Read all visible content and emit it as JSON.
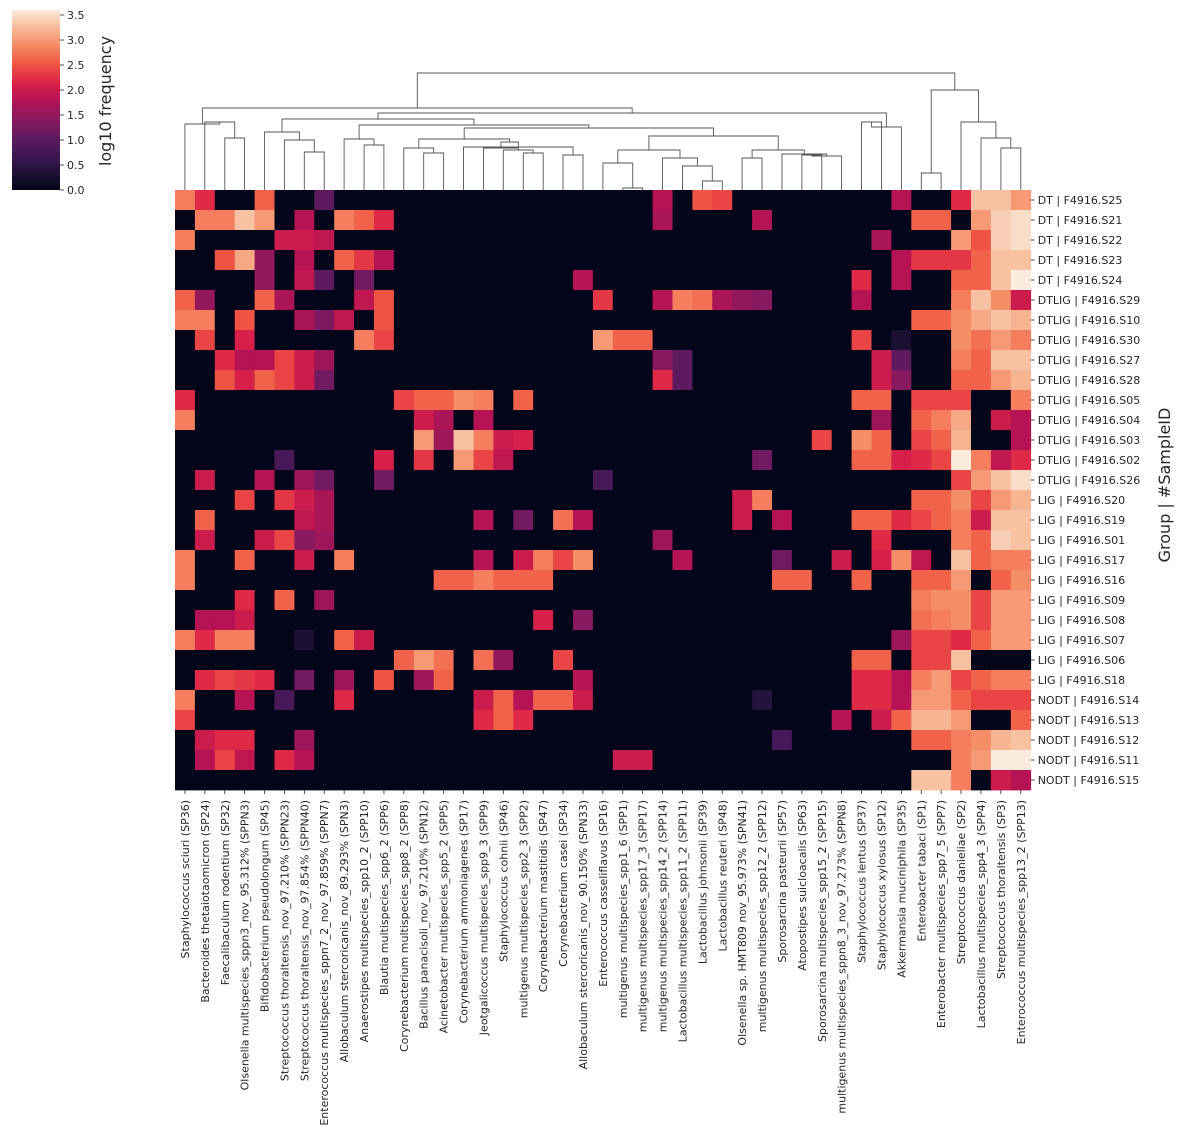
{
  "chart_data": {
    "type": "heatmap",
    "title": "",
    "xlabel": "",
    "ylabel": "Group | #SampleID",
    "colorbar": {
      "label": "log10 frequency",
      "range": [
        0,
        3.6
      ],
      "ticks": [
        "0.0",
        "0.5",
        "1.0",
        "1.5",
        "2.0",
        "2.5",
        "3.0",
        "3.5"
      ],
      "colormap": "rocket"
    },
    "dendrogram": "columns (top)",
    "columns": [
      "Staphylococcus sciuri (SP36)",
      "Bacteroides thetaiotaomicron (SP24)",
      "Faecalibaculum rodentium (SP32)",
      "Olsenella multispecies_sppn3_nov_95.312% (SPPN3)",
      "Bifidobacterium pseudolongum (SP45)",
      "Streptococcus thoraltensis_nov_97.210% (SPPN23)",
      "Streptococcus thoraltensis_nov_97.854% (SPPN40)",
      "Enterococcus multispecies_sppn7_2_nov_97.859% (SPPN7)",
      "Allobaculum stercoricanis_nov_89.293% (SPN3)",
      "Anaerostipes multispecies_spp10_2 (SPP10)",
      "Blautia multispecies_spp6_2 (SPP6)",
      "Corynebacterium multispecies_spp8_2 (SPP8)",
      "Bacillus panacisoli_nov_97.210% (SPN12)",
      "Acinetobacter multispecies_spp5_2 (SPP5)",
      "Corynebacterium ammoniagenes (SP17)",
      "Jeotgalicoccus multispecies_spp9_3 (SPP9)",
      "Staphylococcus cohnii (SP46)",
      "multigenus multispecies_spp2_3 (SPP2)",
      "Corynebacterium mastitidis (SP47)",
      "Corynebacterium casei (SP34)",
      "Allobaculum stercoricanis_nov_90.150% (SPN33)",
      "Enterococcus casseliflavus (SP16)",
      "multigenus multispecies_spp1_6 (SPP1)",
      "multigenus multispecies_spp17_3 (SPP17)",
      "multigenus multispecies_spp14_2 (SPP14)",
      "Lactobacillus multispecies_spp11_2 (SPP11)",
      "Lactobacillus johnsonii (SP39)",
      "Lactobacillus reuteri (SP48)",
      "Olsenella sp. HMT809 nov_95.973% (SPN41)",
      "multigenus multispecies_spp12_2 (SPP12)",
      "Sporosarcina pasteurii (SP57)",
      "Atopostipes suicloacalis (SP63)",
      "Sporosarcina multispecies_spp15_2 (SPP15)",
      "multigenus multispecies_sppn8_3_nov_97.273% (SPPN8)",
      "Staphylococcus lentus (SP37)",
      "Staphylococcus xylosus (SP12)",
      "Akkermansia muciniphila (SP35)",
      "Enterobacter tabaci (SP1)",
      "Enterobacter multispecies_spp7_5 (SPP7)",
      "Streptococcus danieliae (SP2)",
      "Lactobacillus multispecies_spp4_3 (SPP4)",
      "Streptococcus thoraltensis (SP3)",
      "Enterococcus multispecies_spp13_2 (SPP13)"
    ],
    "rows": [
      "DT | F4916.S25",
      "DT | F4916.S21",
      "DT | F4916.S22",
      "DT | F4916.S23",
      "DT | F4916.S24",
      "DTLIG | F4916.S29",
      "DTLIG | F4916.S10",
      "DTLIG | F4916.S30",
      "DTLIG | F4916.S27",
      "DTLIG | F4916.S28",
      "DTLIG | F4916.S05",
      "DTLIG | F4916.S04",
      "DTLIG | F4916.S03",
      "DTLIG | F4916.S02",
      "DTLIG | F4916.S26",
      "LIG | F4916.S20",
      "LIG | F4916.S19",
      "LIG | F4916.S01",
      "LIG | F4916.S17",
      "LIG | F4916.S16",
      "LIG | F4916.S09",
      "LIG | F4916.S08",
      "LIG | F4916.S07",
      "LIG | F4916.S06",
      "LIG | F4916.S18",
      "NODT | F4916.S14",
      "NODT | F4916.S13",
      "NODT | F4916.S12",
      "NODT | F4916.S11",
      "NODT | F4916.S15"
    ],
    "values": [
      [
        2.8,
        2.2,
        0,
        0,
        2.6,
        0,
        0,
        1.0,
        0,
        0,
        0,
        0,
        0,
        0,
        0,
        0,
        0,
        0,
        0,
        0,
        0,
        0,
        0,
        0,
        1.8,
        0,
        2.5,
        2.4,
        0,
        0,
        0,
        0,
        0,
        0,
        0,
        0,
        1.8,
        0,
        0,
        2.2,
        3.3,
        3.3,
        3.0
      ],
      [
        0,
        2.8,
        2.8,
        3.3,
        3.0,
        0,
        1.8,
        0,
        2.8,
        2.6,
        2.2,
        0,
        0,
        0,
        0,
        0,
        0,
        0,
        0,
        0,
        0,
        0,
        0,
        0,
        1.7,
        0,
        0,
        0,
        0,
        1.8,
        0,
        0,
        0,
        0,
        0,
        0,
        0,
        2.6,
        2.6,
        0,
        3.0,
        3.4,
        3.5
      ],
      [
        2.8,
        0,
        0,
        0,
        0,
        2.0,
        2.0,
        1.9,
        0,
        0,
        0,
        0,
        0,
        0,
        0,
        0,
        0,
        0,
        0,
        0,
        0,
        0,
        0,
        0,
        0,
        0,
        0,
        0,
        0,
        0,
        0,
        0,
        0,
        0,
        0,
        1.7,
        0,
        0,
        0,
        3.0,
        2.5,
        3.4,
        3.5
      ],
      [
        0,
        0,
        2.5,
        3.1,
        1.5,
        0,
        1.8,
        0,
        2.6,
        2.3,
        1.8,
        0,
        0,
        0,
        0,
        0,
        0,
        0,
        0,
        0,
        0,
        0,
        0,
        0,
        0,
        0,
        0,
        0,
        0,
        0,
        0,
        0,
        0,
        0,
        0,
        0,
        1.8,
        2.3,
        2.3,
        2.3,
        2.6,
        3.3,
        3.3
      ],
      [
        0,
        0,
        0,
        0,
        1.5,
        0,
        1.9,
        1.0,
        0,
        1.2,
        0,
        0,
        0,
        0,
        0,
        0,
        0,
        0,
        0,
        0,
        1.8,
        0,
        0,
        0,
        0,
        0,
        0,
        0,
        0,
        0,
        0,
        0,
        0,
        0,
        2.2,
        0,
        1.8,
        0,
        0,
        2.6,
        2.6,
        3.3,
        3.6
      ],
      [
        2.6,
        1.5,
        0,
        0,
        2.6,
        1.7,
        0,
        0,
        0,
        1.9,
        2.5,
        0,
        0,
        0,
        0,
        0,
        0,
        0,
        0,
        0,
        0,
        2.3,
        0,
        0,
        1.8,
        2.8,
        2.7,
        1.7,
        1.5,
        1.4,
        0,
        0,
        0,
        0,
        1.8,
        0,
        0,
        0,
        0,
        2.8,
        3.3,
        2.9,
        2.0
      ],
      [
        2.8,
        2.8,
        0,
        2.5,
        0,
        0,
        1.7,
        1.3,
        1.9,
        0,
        2.5,
        0,
        0,
        0,
        0,
        0,
        0,
        0,
        0,
        0,
        0,
        0,
        0,
        0,
        0,
        0,
        0,
        0,
        0,
        0,
        0,
        0,
        0,
        0,
        0,
        0,
        0,
        2.6,
        2.6,
        2.9,
        3.1,
        3.3,
        3.2
      ],
      [
        0,
        2.4,
        0,
        2.1,
        0,
        0,
        0,
        0,
        0,
        2.8,
        2.4,
        0,
        0,
        0,
        0,
        0,
        0,
        0,
        0,
        0,
        0,
        3.0,
        2.6,
        2.6,
        0,
        0,
        0,
        0,
        0,
        0,
        0,
        0,
        0,
        0,
        2.4,
        0,
        0.3,
        0,
        0,
        2.9,
        2.7,
        3.0,
        2.8
      ],
      [
        0,
        0,
        2.2,
        1.8,
        1.8,
        2.4,
        2.0,
        1.6,
        0,
        0,
        0,
        0,
        0,
        0,
        0,
        0,
        0,
        0,
        0,
        0,
        0,
        0,
        0,
        0,
        1.4,
        1.0,
        0,
        0,
        0,
        0,
        0,
        0,
        0,
        0,
        0,
        2.0,
        1.0,
        0,
        0,
        2.8,
        2.6,
        3.3,
        3.3
      ],
      [
        0,
        0,
        2.5,
        2.1,
        2.6,
        2.4,
        2.0,
        1.2,
        0,
        0,
        0,
        0,
        0,
        0,
        0,
        0,
        0,
        0,
        0,
        0,
        0,
        0,
        0,
        0,
        2.2,
        1.0,
        0,
        0,
        0,
        0,
        0,
        0,
        0,
        0,
        0,
        2.0,
        1.4,
        0,
        0,
        2.6,
        2.6,
        3.0,
        3.2
      ],
      [
        2.2,
        0,
        0,
        0,
        0,
        0,
        0,
        0,
        0,
        0,
        0,
        2.4,
        2.6,
        2.6,
        2.9,
        2.8,
        0,
        2.6,
        0,
        0,
        0,
        0,
        0,
        0,
        0,
        0,
        0,
        0,
        0,
        0,
        0,
        0,
        0,
        0,
        2.6,
        2.6,
        0,
        2.4,
        2.4,
        2.4,
        0,
        0,
        2.8
      ],
      [
        2.8,
        0,
        0,
        0,
        0,
        0,
        0,
        0,
        0,
        0,
        0,
        0,
        2.0,
        1.7,
        0,
        1.8,
        0,
        0,
        0,
        0,
        0,
        0,
        0,
        0,
        0,
        0,
        0,
        0,
        0,
        0,
        0,
        0,
        0,
        0,
        0,
        1.6,
        0,
        2.6,
        2.8,
        3.1,
        0,
        2.0,
        1.8
      ],
      [
        0,
        0,
        0,
        0,
        0,
        0,
        0,
        0,
        0,
        0,
        0,
        0,
        3.0,
        1.6,
        3.3,
        2.8,
        2.0,
        2.1,
        0,
        0,
        0,
        0,
        0,
        0,
        0,
        0,
        0,
        0,
        0,
        0,
        0,
        0,
        2.4,
        0,
        2.9,
        2.6,
        0,
        2.4,
        2.6,
        3.2,
        0,
        0,
        1.8
      ],
      [
        0,
        0,
        0,
        0,
        0,
        0.8,
        0,
        0,
        0,
        0,
        2.1,
        0,
        2.3,
        0,
        3.0,
        2.4,
        1.9,
        0,
        0,
        0,
        0,
        0,
        0,
        0,
        0,
        0,
        0,
        0,
        0,
        1.2,
        0,
        0,
        0,
        0,
        2.6,
        2.6,
        2.1,
        2.2,
        2.4,
        3.6,
        2.8,
        1.9,
        2.2
      ],
      [
        0,
        2.0,
        0,
        0,
        1.8,
        0,
        1.6,
        1.2,
        0,
        0,
        1.2,
        0,
        0,
        0,
        0,
        0,
        0,
        0,
        0,
        0,
        0,
        0.8,
        0,
        0,
        0,
        0,
        0,
        0,
        0,
        0,
        0,
        0,
        0,
        0,
        0,
        0,
        0,
        0,
        0,
        2.4,
        3.0,
        3.3,
        3.5
      ],
      [
        0,
        0,
        0,
        2.4,
        0,
        2.3,
        2.0,
        1.7,
        0,
        0,
        0,
        0,
        0,
        0,
        0,
        0,
        0,
        0,
        0,
        0,
        0,
        0,
        0,
        0,
        0,
        0,
        0,
        0,
        2.0,
        2.8,
        0,
        0,
        0,
        0,
        0,
        0,
        0,
        2.6,
        2.6,
        2.9,
        2.4,
        3.0,
        3.2
      ],
      [
        0,
        2.6,
        0,
        0,
        0,
        0,
        1.9,
        1.7,
        0,
        0,
        0,
        0,
        0,
        0,
        0,
        1.8,
        0,
        1.2,
        0,
        2.7,
        1.8,
        0,
        0,
        0,
        0,
        0,
        0,
        0,
        2.0,
        0,
        1.8,
        0,
        0,
        0,
        2.6,
        2.6,
        2.2,
        2.4,
        2.6,
        2.8,
        2.0,
        3.3,
        3.3
      ],
      [
        0,
        2.0,
        0,
        0,
        2.0,
        2.4,
        1.4,
        1.6,
        0,
        0,
        0,
        0,
        0,
        0,
        0,
        0,
        0,
        0,
        0,
        0,
        0,
        0,
        0,
        0,
        1.6,
        0,
        0,
        0,
        0,
        0,
        0,
        0,
        0,
        0,
        0,
        2.2,
        0,
        0,
        0,
        2.8,
        2.6,
        3.4,
        3.3
      ],
      [
        2.8,
        0,
        0,
        2.6,
        0,
        0,
        2.0,
        0,
        2.8,
        0,
        0,
        0,
        0,
        0,
        0,
        1.8,
        0,
        2.0,
        2.8,
        2.4,
        2.9,
        0,
        0,
        0,
        0,
        1.8,
        0,
        0,
        0,
        0,
        1.2,
        0,
        0,
        2.0,
        0,
        2.1,
        2.9,
        1.9,
        0,
        3.3,
        2.6,
        2.8,
        2.8
      ],
      [
        2.8,
        0,
        0,
        0,
        0,
        0,
        0,
        0,
        0,
        0,
        0,
        0,
        0,
        2.6,
        2.6,
        2.8,
        2.6,
        2.6,
        2.6,
        0,
        0,
        0,
        0,
        0,
        0,
        0,
        0,
        0,
        0,
        0,
        2.6,
        2.6,
        0,
        0,
        2.6,
        0,
        0,
        2.6,
        2.6,
        3.0,
        0,
        2.6,
        2.9
      ],
      [
        0,
        0,
        0,
        2.2,
        0,
        2.6,
        0,
        1.6,
        0,
        0,
        0,
        0,
        0,
        0,
        0,
        0,
        0,
        0,
        0,
        0,
        0,
        0,
        0,
        0,
        0,
        0,
        0,
        0,
        0,
        0,
        0,
        0,
        0,
        0,
        0,
        0,
        0,
        2.8,
        2.9,
        2.9,
        2.4,
        3.0,
        3.0
      ],
      [
        0,
        1.8,
        1.8,
        2.0,
        0,
        0,
        0,
        0,
        0,
        0,
        0,
        0,
        0,
        0,
        0,
        0,
        0,
        0,
        2.1,
        0,
        1.4,
        0,
        0,
        0,
        0,
        0,
        0,
        0,
        0,
        0,
        0,
        0,
        0,
        0,
        0,
        0,
        0,
        2.7,
        2.8,
        2.9,
        2.4,
        3.0,
        3.0
      ],
      [
        2.8,
        2.2,
        2.8,
        2.8,
        0,
        0,
        0.3,
        0,
        2.6,
        2.0,
        0,
        0,
        0,
        0,
        0,
        0,
        0,
        0,
        0,
        0,
        0,
        0,
        0,
        0,
        0,
        0,
        0,
        0,
        0,
        0,
        0,
        0,
        0,
        0,
        0,
        0,
        1.6,
        2.4,
        2.4,
        2.2,
        2.6,
        3.0,
        3.0
      ],
      [
        0,
        0,
        0,
        0,
        0,
        0,
        0,
        0,
        0,
        0,
        0,
        2.6,
        3.0,
        2.7,
        0,
        2.7,
        1.5,
        0,
        0,
        2.4,
        0,
        0,
        0,
        0,
        0,
        0,
        0,
        0,
        0,
        0,
        0,
        0,
        0,
        0,
        2.6,
        2.6,
        0,
        2.4,
        2.4,
        3.3,
        0,
        0,
        0
      ],
      [
        0,
        2.2,
        2.4,
        2.3,
        2.2,
        0,
        1.2,
        0,
        1.6,
        0,
        2.5,
        0,
        1.6,
        2.6,
        0,
        0,
        0,
        0,
        0,
        0,
        1.8,
        0,
        0,
        0,
        0,
        0,
        0,
        0,
        0,
        0,
        0,
        0,
        0,
        0,
        2.2,
        2.2,
        1.8,
        2.8,
        3.0,
        2.4,
        2.6,
        2.8,
        2.8
      ],
      [
        2.8,
        0,
        0,
        1.8,
        0,
        0.8,
        0,
        0,
        2.2,
        0,
        0,
        0,
        0,
        0,
        0,
        2.0,
        2.6,
        1.8,
        2.6,
        2.6,
        2.0,
        0,
        0,
        0,
        0,
        0,
        0,
        0,
        0,
        0.4,
        0,
        0,
        0,
        0,
        2.2,
        2.2,
        1.8,
        3.0,
        3.0,
        2.6,
        2.4,
        2.4,
        2.4
      ],
      [
        2.4,
        0,
        0,
        0,
        0,
        0,
        0,
        0,
        0,
        0,
        0,
        0,
        0,
        0,
        0,
        2.2,
        2.6,
        2.2,
        0,
        0,
        0,
        0,
        0,
        0,
        0,
        0,
        0,
        0,
        0,
        0,
        0,
        0,
        0,
        1.8,
        0,
        2.0,
        2.6,
        3.2,
        3.2,
        3.0,
        0,
        0,
        2.6
      ],
      [
        0,
        2.0,
        2.2,
        2.2,
        0,
        0,
        1.6,
        0,
        0,
        0,
        0,
        0,
        0,
        0,
        0,
        0,
        0,
        0,
        0,
        0,
        0,
        0,
        0,
        0,
        0,
        0,
        0,
        0,
        0,
        0,
        0.8,
        0,
        0,
        0,
        0,
        0,
        0,
        2.6,
        2.6,
        2.8,
        2.9,
        3.2,
        3.3
      ],
      [
        0,
        1.8,
        2.4,
        1.9,
        0,
        2.2,
        1.8,
        0,
        0,
        0,
        0,
        0,
        0,
        0,
        0,
        0,
        0,
        0,
        0,
        0,
        0,
        0,
        2.0,
        2.0,
        0,
        0,
        0,
        0,
        0,
        0,
        0,
        0,
        0,
        0,
        0,
        0,
        0,
        0,
        0,
        2.8,
        3.0,
        3.6,
        3.6
      ],
      [
        0,
        0,
        0,
        0,
        0,
        0,
        0,
        0,
        0,
        0,
        0,
        0,
        0,
        0,
        0,
        0,
        0,
        0,
        0,
        0,
        0,
        0,
        0,
        0,
        0,
        0,
        0,
        0,
        0,
        0,
        0,
        0,
        0,
        0,
        0,
        0,
        0,
        3.3,
        3.3,
        2.8,
        0,
        2.0,
        1.8
      ]
    ]
  }
}
